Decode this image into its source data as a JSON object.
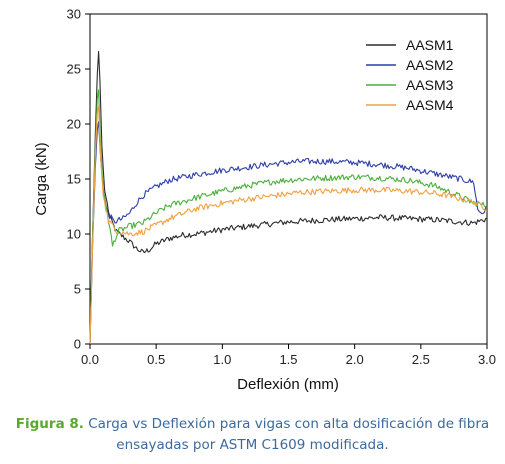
{
  "chart_data": {
    "type": "line",
    "xlabel": "Deflexión (mm)",
    "ylabel": "Carga (kN)",
    "xlim": [
      0,
      3.0
    ],
    "ylim": [
      0,
      30
    ],
    "x_ticks": [
      "0.0",
      "0.5",
      "1.0",
      "1.5",
      "2.0",
      "2.5",
      "3.0"
    ],
    "y_ticks": [
      "0",
      "5",
      "10",
      "15",
      "20",
      "25",
      "30"
    ],
    "grid": false,
    "legend_position": "top-right",
    "series": [
      {
        "name": "AASM1",
        "color": "#2b2b2b",
        "points": [
          [
            0,
            0
          ],
          [
            0.02,
            10
          ],
          [
            0.04,
            19
          ],
          [
            0.055,
            24.5
          ],
          [
            0.065,
            26.6
          ],
          [
            0.075,
            24
          ],
          [
            0.09,
            18
          ],
          [
            0.11,
            14
          ],
          [
            0.15,
            11.5
          ],
          [
            0.2,
            10.2
          ],
          [
            0.3,
            9.3
          ],
          [
            0.35,
            8.7
          ],
          [
            0.4,
            8.3
          ],
          [
            0.45,
            8.6
          ],
          [
            0.5,
            9.1
          ],
          [
            0.6,
            9.6
          ],
          [
            0.7,
            9.9
          ],
          [
            0.8,
            10.0
          ],
          [
            1.0,
            10.4
          ],
          [
            1.2,
            10.7
          ],
          [
            1.5,
            11.1
          ],
          [
            1.8,
            11.3
          ],
          [
            2.0,
            11.4
          ],
          [
            2.2,
            11.5
          ],
          [
            2.4,
            11.4
          ],
          [
            2.6,
            11.3
          ],
          [
            2.8,
            11.1
          ],
          [
            2.9,
            11.0
          ],
          [
            2.95,
            11.2
          ],
          [
            3.0,
            11.4
          ]
        ]
      },
      {
        "name": "AASM2",
        "color": "#2d3ea8",
        "points": [
          [
            0,
            0
          ],
          [
            0.02,
            9
          ],
          [
            0.04,
            16
          ],
          [
            0.055,
            19.5
          ],
          [
            0.065,
            20.2
          ],
          [
            0.08,
            17
          ],
          [
            0.1,
            14
          ],
          [
            0.13,
            12
          ],
          [
            0.18,
            11.1
          ],
          [
            0.25,
            11.4
          ],
          [
            0.3,
            11.9
          ],
          [
            0.35,
            12.8
          ],
          [
            0.4,
            13.5
          ],
          [
            0.5,
            14.3
          ],
          [
            0.6,
            14.9
          ],
          [
            0.8,
            15.4
          ],
          [
            1.0,
            15.8
          ],
          [
            1.2,
            16.1
          ],
          [
            1.4,
            16.4
          ],
          [
            1.6,
            16.6
          ],
          [
            1.8,
            16.6
          ],
          [
            2.0,
            16.5
          ],
          [
            2.2,
            16.3
          ],
          [
            2.4,
            16.0
          ],
          [
            2.6,
            15.5
          ],
          [
            2.8,
            15.0
          ],
          [
            2.9,
            14.7
          ],
          [
            2.93,
            12.2
          ],
          [
            2.96,
            11.9
          ],
          [
            3.0,
            12.3
          ]
        ]
      },
      {
        "name": "AASM3",
        "color": "#4cae3c",
        "points": [
          [
            0,
            0
          ],
          [
            0.02,
            10
          ],
          [
            0.04,
            18
          ],
          [
            0.055,
            22.3
          ],
          [
            0.065,
            23.1
          ],
          [
            0.08,
            18
          ],
          [
            0.1,
            14
          ],
          [
            0.13,
            12
          ],
          [
            0.15,
            10.5
          ],
          [
            0.17,
            8.9
          ],
          [
            0.19,
            9.6
          ],
          [
            0.22,
            10.3
          ],
          [
            0.3,
            10.7
          ],
          [
            0.4,
            11.0
          ],
          [
            0.5,
            11.9
          ],
          [
            0.6,
            12.6
          ],
          [
            0.8,
            13.3
          ],
          [
            1.0,
            13.9
          ],
          [
            1.2,
            14.4
          ],
          [
            1.4,
            14.8
          ],
          [
            1.6,
            15.0
          ],
          [
            1.8,
            15.1
          ],
          [
            2.0,
            15.2
          ],
          [
            2.2,
            15.1
          ],
          [
            2.4,
            14.9
          ],
          [
            2.6,
            14.4
          ],
          [
            2.7,
            13.9
          ],
          [
            2.8,
            13.4
          ],
          [
            2.9,
            12.8
          ],
          [
            3.0,
            12.6
          ]
        ]
      },
      {
        "name": "AASM4",
        "color": "#f0a040",
        "points": [
          [
            0,
            0
          ],
          [
            0.02,
            9
          ],
          [
            0.04,
            17
          ],
          [
            0.055,
            21.0
          ],
          [
            0.065,
            21.6
          ],
          [
            0.08,
            17
          ],
          [
            0.1,
            13.5
          ],
          [
            0.14,
            11.2
          ],
          [
            0.2,
            10.3
          ],
          [
            0.3,
            10.0
          ],
          [
            0.4,
            10.2
          ],
          [
            0.5,
            10.8
          ],
          [
            0.6,
            11.4
          ],
          [
            0.8,
            12.3
          ],
          [
            1.0,
            12.8
          ],
          [
            1.2,
            13.2
          ],
          [
            1.4,
            13.5
          ],
          [
            1.6,
            13.8
          ],
          [
            1.8,
            13.9
          ],
          [
            2.0,
            14.0
          ],
          [
            2.2,
            14.0
          ],
          [
            2.4,
            13.9
          ],
          [
            2.6,
            13.7
          ],
          [
            2.7,
            13.5
          ],
          [
            2.8,
            13.2
          ],
          [
            2.9,
            12.9
          ],
          [
            3.0,
            12.3
          ]
        ]
      }
    ]
  },
  "caption": {
    "label": "Figura 8.",
    "line1_text": " Carga vs Deflexión para vigas con alta dosificación de fibra",
    "line2_text": "ensayadas por ASTM C1609 modificada."
  }
}
